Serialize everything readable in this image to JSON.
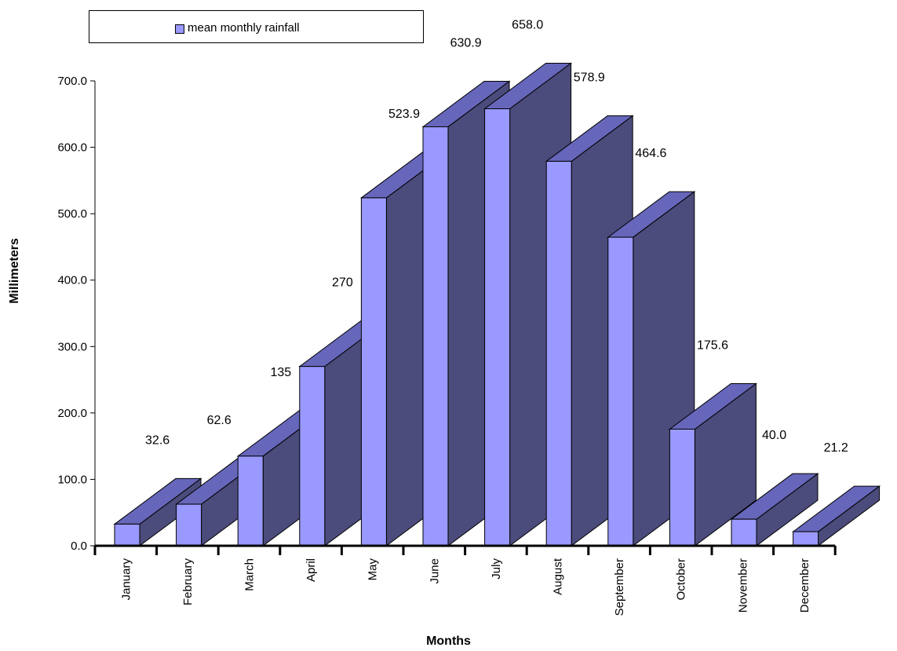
{
  "chart_data": {
    "type": "bar",
    "categories": [
      "January",
      "February",
      "March",
      "April",
      "May",
      "June",
      "July",
      "August",
      "September",
      "October",
      "November",
      "December"
    ],
    "series": [
      {
        "name": "mean monthly rainfall",
        "values": [
          32.6,
          62.6,
          135.0,
          270.0,
          523.9,
          630.9,
          658.0,
          578.9,
          464.6,
          175.6,
          40.0,
          21.2
        ],
        "color": "#9999ff"
      }
    ],
    "data_labels": [
      "32.6",
      "62.6",
      "135",
      "270",
      "523.9",
      "630.9",
      "658.0",
      "578.9",
      "464.6",
      "175.6",
      "40.0",
      "21.2"
    ],
    "y_ticks": [
      "0.0",
      "100.0",
      "200.0",
      "300.0",
      "400.0",
      "500.0",
      "600.0",
      "700.0"
    ],
    "xlabel": "Months",
    "ylabel": "Millimeters",
    "ylim": [
      0,
      700
    ],
    "legend": "top-left",
    "grid": false,
    "style": "3d",
    "colors": {
      "front": "#9999ff",
      "top": "#6666bb",
      "side": "#4b4b7c"
    }
  }
}
